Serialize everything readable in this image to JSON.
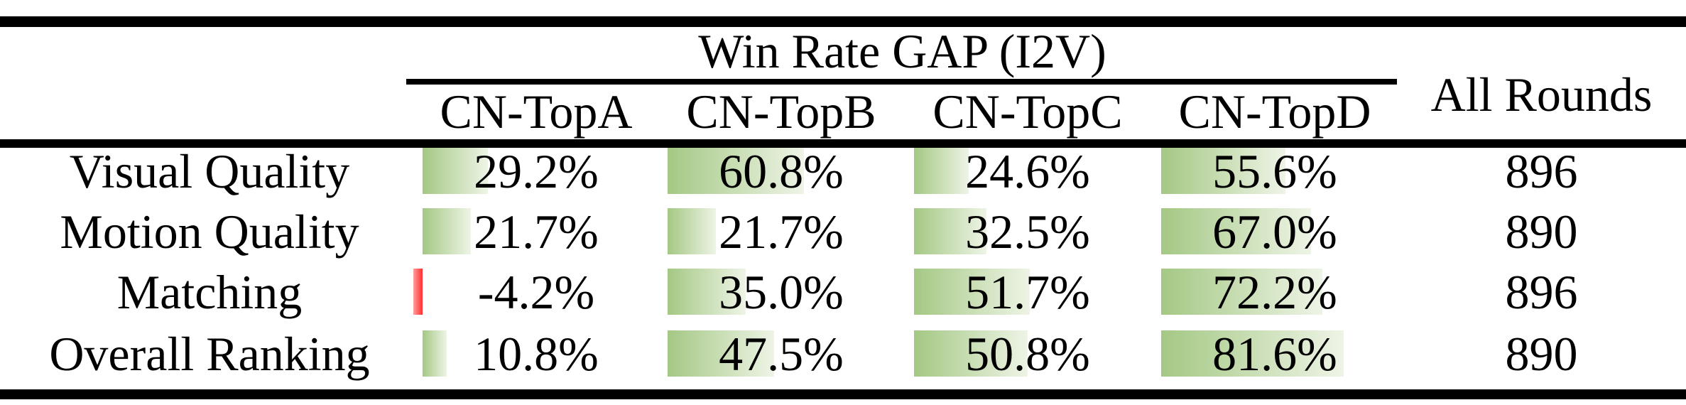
{
  "table": {
    "title": "Win Rate GAP (I2V)",
    "all_rounds_header": "All Rounds",
    "columns": [
      "CN-TopA",
      "CN-TopB",
      "CN-TopC",
      "CN-TopD"
    ],
    "rows": [
      {
        "label": "Visual Quality",
        "cells": [
          {
            "value": 29.2,
            "text": "29.2%"
          },
          {
            "value": 60.8,
            "text": "60.8%"
          },
          {
            "value": 24.6,
            "text": "24.6%"
          },
          {
            "value": 55.6,
            "text": "55.6%"
          }
        ],
        "all_rounds": "896"
      },
      {
        "label": "Motion Quality",
        "cells": [
          {
            "value": 21.7,
            "text": "21.7%"
          },
          {
            "value": 21.7,
            "text": "21.7%"
          },
          {
            "value": 32.5,
            "text": "32.5%"
          },
          {
            "value": 67.0,
            "text": "67.0%"
          }
        ],
        "all_rounds": "890"
      },
      {
        "label": "Matching",
        "cells": [
          {
            "value": -4.2,
            "text": "-4.2%"
          },
          {
            "value": 35.0,
            "text": "35.0%"
          },
          {
            "value": 51.7,
            "text": "51.7%"
          },
          {
            "value": 72.2,
            "text": "72.2%"
          }
        ],
        "all_rounds": "896"
      },
      {
        "label": "Overall Ranking",
        "cells": [
          {
            "value": 10.8,
            "text": "10.8%"
          },
          {
            "value": 47.5,
            "text": "47.5%"
          },
          {
            "value": 50.8,
            "text": "50.8%"
          },
          {
            "value": 81.6,
            "text": "81.6%"
          }
        ],
        "all_rounds": "890"
      }
    ],
    "colors": {
      "positive_bar_from": "#a4c884",
      "positive_bar_to": "#eef4e6",
      "negative_bar_strong": "#ff2e2e",
      "negative_bar_light": "#ff9e9e",
      "rule": "#000000",
      "text": "#000000",
      "background": "#ffffff"
    }
  },
  "chart_data": {
    "type": "table",
    "title": "Win Rate GAP (I2V)",
    "categories": [
      "Visual Quality",
      "Motion Quality",
      "Matching",
      "Overall Ranking"
    ],
    "series": [
      {
        "name": "CN-TopA",
        "values": [
          29.2,
          21.7,
          -4.2,
          10.8
        ]
      },
      {
        "name": "CN-TopB",
        "values": [
          60.8,
          21.7,
          35.0,
          47.5
        ]
      },
      {
        "name": "CN-TopC",
        "values": [
          24.6,
          32.5,
          51.7,
          50.8
        ]
      },
      {
        "name": "CN-TopD",
        "values": [
          55.6,
          67.0,
          72.2,
          81.6
        ]
      }
    ],
    "all_rounds": [
      896,
      890,
      896,
      890
    ],
    "unit": "percent",
    "notes": "in-cell gradient data bars; green for positive, red for negative"
  }
}
